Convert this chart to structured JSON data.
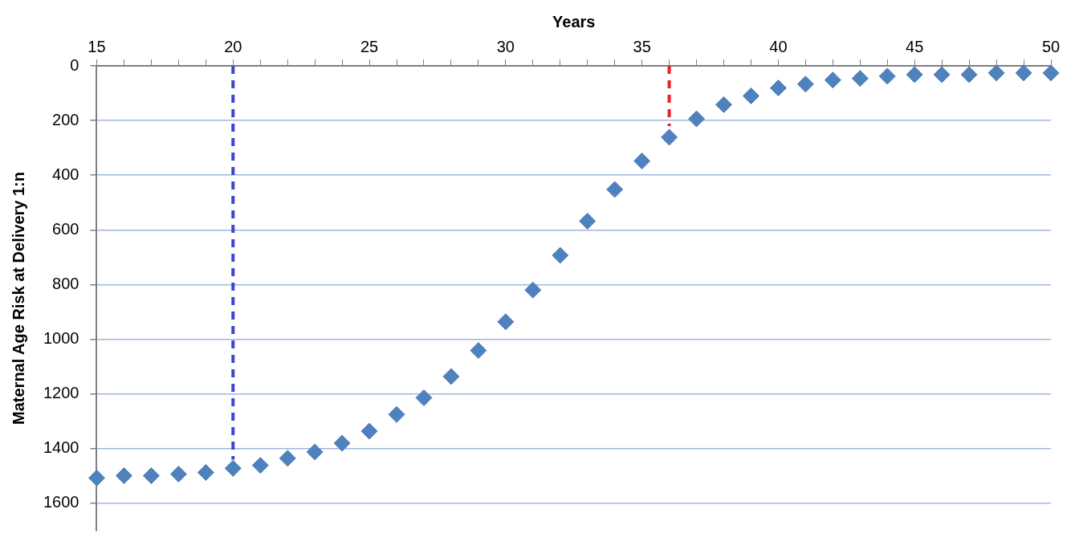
{
  "chart_data": {
    "type": "scatter",
    "xlabel": "Years",
    "ylabel": "Maternal Age Risk at Delivery 1:n",
    "xlim": [
      15,
      50
    ],
    "xticks": [
      15,
      {
        "value": 16,
        "label": null
      },
      {
        "value": 17,
        "label": null
      },
      {
        "value": 18,
        "label": null
      },
      {
        "value": 19,
        "label": null
      },
      20,
      {
        "value": 21,
        "label": null
      },
      {
        "value": 22,
        "label": null
      },
      {
        "value": 23,
        "label": null
      },
      {
        "value": 24,
        "label": null
      },
      25,
      {
        "value": 26,
        "label": null
      },
      {
        "value": 27,
        "label": null
      },
      {
        "value": 28,
        "label": null
      },
      {
        "value": 29,
        "label": null
      },
      30,
      {
        "value": 31,
        "label": null
      },
      {
        "value": 32,
        "label": null
      },
      {
        "value": 33,
        "label": null
      },
      {
        "value": 34,
        "label": null
      },
      35,
      {
        "value": 36,
        "label": null
      },
      {
        "value": 37,
        "label": null
      },
      {
        "value": 38,
        "label": null
      },
      {
        "value": 39,
        "label": null
      },
      40,
      {
        "value": 41,
        "label": null
      },
      {
        "value": 42,
        "label": null
      },
      {
        "value": 43,
        "label": null
      },
      {
        "value": 44,
        "label": null
      },
      45,
      {
        "value": 46,
        "label": null
      },
      {
        "value": 47,
        "label": null
      },
      {
        "value": 48,
        "label": null
      },
      {
        "value": 49,
        "label": null
      },
      50
    ],
    "ylim": [
      1700,
      0
    ],
    "yticks": [
      0,
      200,
      400,
      600,
      800,
      1000,
      1200,
      1400,
      1600
    ],
    "grid": "y",
    "legend": false,
    "marker": "diamond",
    "series": [
      {
        "color": "#4f81bd",
        "x": [
          15,
          16,
          17,
          18,
          19,
          20,
          21,
          22,
          23,
          24,
          25,
          26,
          27,
          28,
          29,
          30,
          31,
          32,
          33,
          34,
          35,
          36,
          37,
          38,
          39,
          40,
          41,
          42,
          43,
          44,
          45,
          46,
          47,
          48,
          49,
          50
        ],
        "values": [
          1507,
          1499,
          1499,
          1493,
          1487,
          1472,
          1461,
          1435,
          1412,
          1380,
          1336,
          1275,
          1214,
          1136,
          1041,
          936,
          820,
          693,
          568,
          452,
          348,
          261,
          194,
          142,
          110,
          81,
          67,
          52,
          46,
          38,
          32,
          32,
          32,
          26,
          26,
          26
        ]
      },
      {
        "type": "line",
        "color": "#3b44d0",
        "line_style": "dashed",
        "marker": "none",
        "x": [
          20,
          20
        ],
        "values": [
          0,
          1440
        ]
      },
      {
        "type": "line",
        "color": "#e8202a",
        "line_style": "dashed",
        "marker": "none",
        "x": [
          36,
          36
        ],
        "values": [
          0,
          220
        ]
      }
    ]
  }
}
